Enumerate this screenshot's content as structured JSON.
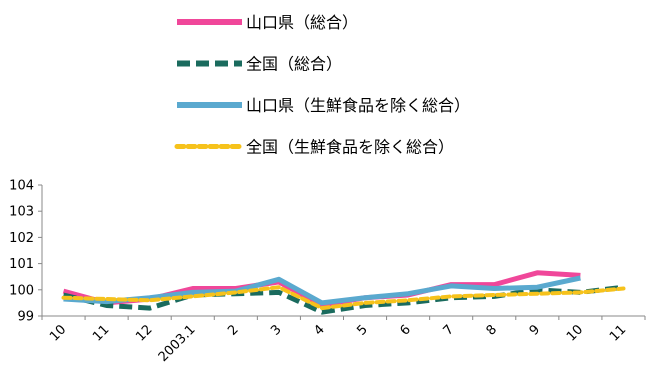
{
  "chart_data": {
    "type": "line",
    "categories": [
      "10",
      "11",
      "12",
      "2003.1",
      "2",
      "3",
      "4",
      "5",
      "6",
      "7",
      "8",
      "9",
      "10",
      "11"
    ],
    "ylim": [
      99,
      104
    ],
    "yticks": [
      99,
      100,
      101,
      102,
      103,
      104
    ],
    "grid": false,
    "legend_position": "top",
    "series": [
      {
        "name": "山口県（総合）",
        "color": "#f0479a",
        "style": "solid",
        "values": [
          99.95,
          99.5,
          99.65,
          100.05,
          100.05,
          100.3,
          99.4,
          99.7,
          99.8,
          100.2,
          100.2,
          100.65,
          100.55,
          null
        ]
      },
      {
        "name": "全国（総合）",
        "color": "#1a6b5e",
        "style": "dashed",
        "values": [
          99.8,
          99.4,
          99.3,
          99.8,
          99.85,
          99.9,
          99.15,
          99.4,
          99.5,
          99.7,
          99.75,
          100.0,
          99.9,
          100.1
        ]
      },
      {
        "name": "山口県（生鮮食品を除く総合）",
        "color": "#5aa9cf",
        "style": "solid",
        "values": [
          99.65,
          99.55,
          99.7,
          99.9,
          99.95,
          100.4,
          99.5,
          99.7,
          99.85,
          100.15,
          100.05,
          100.1,
          100.45,
          null
        ]
      },
      {
        "name": "全国（生鮮食品を除く総合）",
        "color": "#f6c21b",
        "style": "dotted",
        "values": [
          99.7,
          99.65,
          99.6,
          99.75,
          99.9,
          100.1,
          99.3,
          99.5,
          99.6,
          99.75,
          99.8,
          99.85,
          99.9,
          100.05
        ]
      }
    ]
  }
}
